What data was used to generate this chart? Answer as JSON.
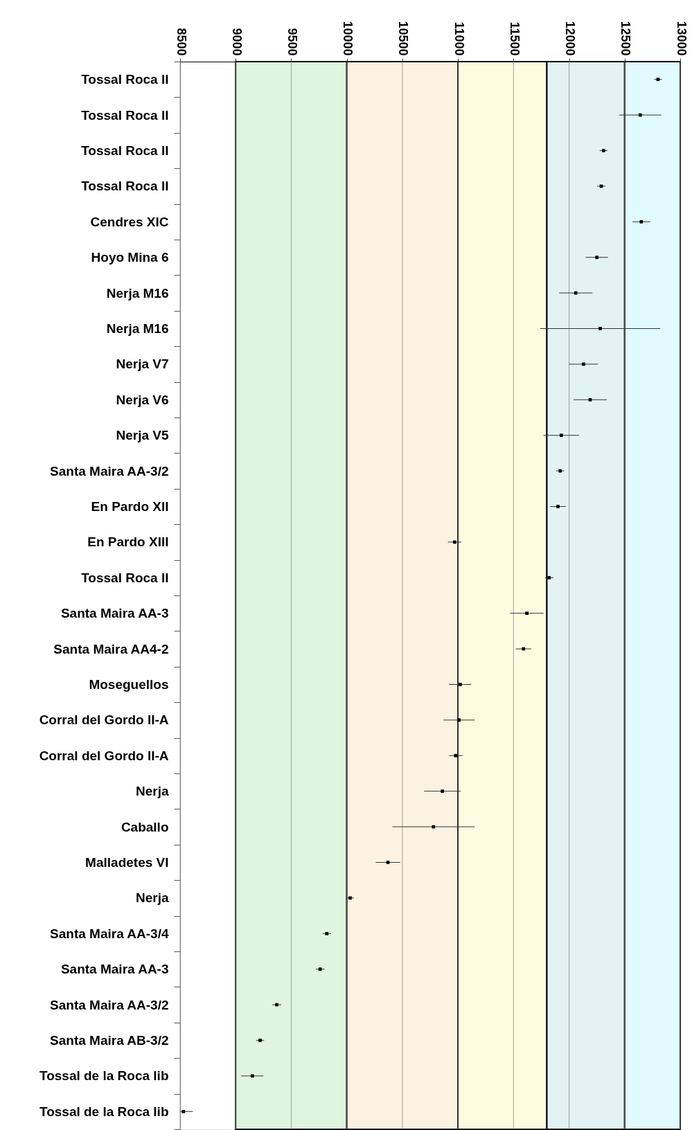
{
  "chart_data": {
    "type": "scatter",
    "orientation": "horizontal",
    "categories": [
      "Tossal Roca II",
      "Tossal Roca II",
      "Tossal Roca II",
      "Tossal Roca II",
      "Cendres XIC",
      "Hoyo Mina 6",
      "Nerja M16",
      "Nerja M16",
      "Nerja V7",
      "Nerja V6",
      "Nerja V5",
      "Santa Maira AA-3/2",
      "En Pardo XII",
      "En Pardo XIII",
      "Tossal Roca II",
      "Santa Maira AA-3",
      "Santa Maira AA4-2",
      "Moseguellos",
      "Corral del Gordo II-A",
      "Corral del Gordo II-A",
      "Nerja",
      "Caballo",
      "Malladetes VI",
      "Nerja",
      "Santa Maira AA-3/4",
      "Santa Maira AA-3",
      "Santa Maira AA-3/2",
      "Santa Maira AB-3/2",
      "Tossal de la Roca lib",
      "Tossal de la Roca lib"
    ],
    "series": [
      {
        "color": "#000000",
        "values": [
          12800,
          12640,
          12310,
          12290,
          12650,
          12250,
          12060,
          12280,
          12130,
          12190,
          11930,
          11920,
          11900,
          10970,
          11820,
          11620,
          11590,
          11020,
          11010,
          10980,
          10860,
          10780,
          10370,
          10030,
          9820,
          9760,
          9370,
          9220,
          9150,
          8530
        ],
        "errors": [
          35,
          190,
          35,
          38,
          80,
          100,
          150,
          540,
          130,
          150,
          160,
          35,
          70,
          60,
          38,
          150,
          70,
          100,
          140,
          60,
          165,
          370,
          110,
          35,
          38,
          40,
          40,
          36,
          100,
          [
            8500,
            8615
          ]
        ]
      }
    ],
    "xlim": [
      8500,
      13000
    ],
    "xticks": [
      8500,
      9000,
      9500,
      10000,
      10500,
      11000,
      11500,
      12000,
      12500,
      13000
    ],
    "grid": "x",
    "marker": "square",
    "bands": [
      {
        "axis": "x",
        "from": 9000,
        "to": 10000,
        "color": "#dff5df"
      },
      {
        "axis": "x",
        "from": 10000,
        "to": 11000,
        "color": "#fcf2e2"
      },
      {
        "axis": "x",
        "from": 11000,
        "to": 11800,
        "color": "#fefce0"
      },
      {
        "axis": "x",
        "from": 11800,
        "to": 12500,
        "color": "#e3f2f4"
      },
      {
        "axis": "x",
        "from": 12500,
        "to": 13000,
        "color": "#e0fafd"
      }
    ]
  }
}
